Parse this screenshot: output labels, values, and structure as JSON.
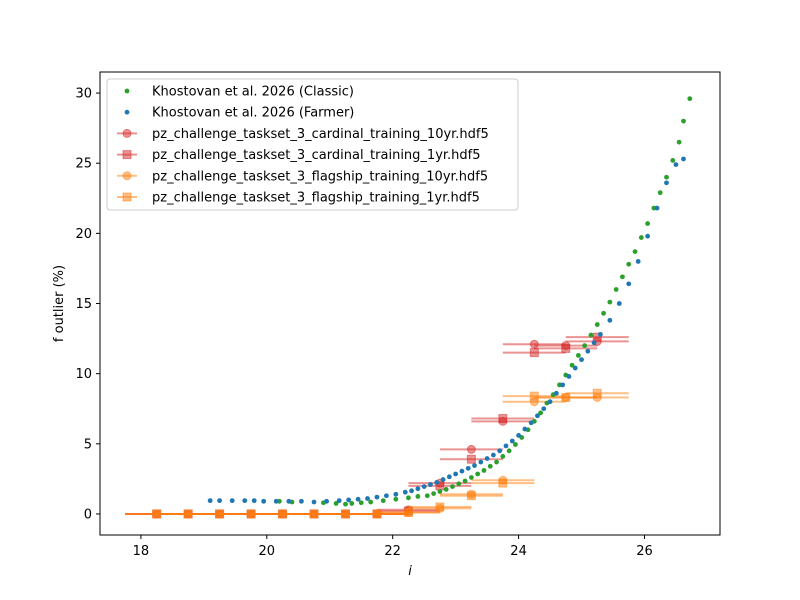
{
  "chart_data": {
    "type": "scatter",
    "title": "",
    "xlabel": "i",
    "ylabel": "f outlier (%)",
    "xlim": [
      17.35,
      27.2
    ],
    "ylim": [
      -1.5,
      31.5
    ],
    "xticks": [
      18,
      20,
      22,
      24,
      26
    ],
    "yticks": [
      0,
      5,
      10,
      15,
      20,
      25,
      30
    ],
    "grid": false,
    "legend_position": "top-left",
    "series": [
      {
        "name": "Khostovan et al. 2026 (Classic)",
        "kind": "points",
        "color": "#2ca02c",
        "x": [
          20.2,
          20.4,
          20.9,
          21.1,
          21.25,
          21.35,
          21.5,
          21.65,
          21.85,
          22.05,
          22.25,
          22.4,
          22.55,
          22.65,
          22.75,
          22.85,
          22.95,
          23.05,
          23.15,
          23.25,
          23.35,
          23.45,
          23.55,
          23.65,
          23.75,
          23.85,
          23.95,
          24.05,
          24.15,
          24.25,
          24.35,
          24.45,
          24.55,
          24.65,
          24.75,
          24.85,
          24.95,
          25.05,
          25.15,
          25.25,
          25.35,
          25.45,
          25.55,
          25.65,
          25.75,
          25.85,
          25.95,
          26.05,
          26.15,
          26.25,
          26.35,
          26.45,
          26.55,
          26.62,
          26.72
        ],
        "y": [
          0.9,
          0.85,
          0.8,
          0.75,
          0.7,
          0.75,
          0.8,
          0.85,
          0.95,
          1.05,
          1.15,
          1.25,
          1.3,
          1.45,
          1.6,
          1.75,
          1.95,
          2.15,
          2.35,
          2.6,
          2.85,
          3.1,
          3.4,
          3.7,
          4.1,
          4.5,
          4.95,
          5.45,
          6.0,
          6.6,
          7.2,
          7.9,
          8.5,
          9.2,
          9.9,
          10.6,
          11.3,
          12.0,
          12.75,
          13.5,
          14.3,
          15.1,
          16.0,
          16.9,
          17.8,
          18.7,
          19.7,
          20.7,
          21.8,
          22.9,
          24.0,
          25.2,
          26.5,
          28.0,
          29.6
        ]
      },
      {
        "name": "Khostovan et al. 2026 (Farmer)",
        "kind": "points",
        "color": "#1f77b4",
        "x": [
          19.1,
          19.25,
          19.45,
          19.65,
          19.8,
          19.95,
          20.15,
          20.35,
          20.55,
          20.75,
          20.95,
          21.15,
          21.3,
          21.45,
          21.6,
          21.75,
          21.9,
          22.05,
          22.2,
          22.3,
          22.4,
          22.5,
          22.6,
          22.7,
          22.8,
          22.9,
          23.0,
          23.1,
          23.2,
          23.3,
          23.4,
          23.5,
          23.6,
          23.7,
          23.8,
          23.9,
          24.0,
          24.1,
          24.2,
          24.3,
          24.4,
          24.5,
          24.6,
          24.7,
          24.8,
          24.9,
          25.0,
          25.1,
          25.2,
          25.3,
          25.45,
          25.6,
          25.75,
          25.9,
          26.05,
          26.2,
          26.35,
          26.5,
          26.62
        ],
        "y": [
          0.95,
          0.95,
          0.95,
          0.95,
          0.95,
          0.9,
          0.9,
          0.9,
          0.9,
          0.85,
          0.9,
          0.95,
          1.0,
          1.05,
          1.1,
          1.2,
          1.3,
          1.4,
          1.55,
          1.65,
          1.8,
          1.95,
          2.1,
          2.25,
          2.45,
          2.65,
          2.85,
          3.05,
          3.25,
          3.45,
          3.7,
          3.95,
          4.2,
          4.5,
          4.85,
          5.2,
          5.6,
          6.05,
          6.5,
          7.0,
          7.5,
          8.0,
          8.6,
          9.2,
          9.8,
          10.4,
          11.0,
          11.6,
          12.2,
          12.8,
          13.8,
          15.0,
          16.4,
          18.0,
          19.8,
          21.8,
          23.6,
          24.9,
          25.3
        ]
      },
      {
        "name": "pz_challenge_taskset_3_cardinal_training_10yr.hdf5",
        "kind": "errorbar",
        "marker": "circle",
        "color": "#d62728",
        "x": [
          18.25,
          18.75,
          19.25,
          19.75,
          20.25,
          20.75,
          21.25,
          21.75,
          22.25,
          22.75,
          23.25,
          23.75,
          24.25,
          24.75,
          25.25
        ],
        "xerr": [
          0.5,
          0.5,
          0.5,
          0.5,
          0.5,
          0.5,
          0.5,
          0.5,
          0.5,
          0.5,
          0.5,
          0.5,
          0.5,
          0.5,
          0.5
        ],
        "y": [
          0,
          0,
          0,
          0,
          0,
          0,
          0,
          0,
          0.3,
          2.2,
          4.6,
          6.6,
          12.1,
          12.0,
          12.3
        ]
      },
      {
        "name": "pz_challenge_taskset_3_cardinal_training_1yr.hdf5",
        "kind": "errorbar",
        "marker": "square",
        "color": "#d62728",
        "x": [
          18.25,
          18.75,
          19.25,
          19.75,
          20.25,
          20.75,
          21.25,
          21.75,
          22.25,
          22.75,
          23.25,
          23.75,
          24.25,
          24.75,
          25.25
        ],
        "xerr": [
          0.5,
          0.5,
          0.5,
          0.5,
          0.5,
          0.5,
          0.5,
          0.5,
          0.5,
          0.5,
          0.5,
          0.5,
          0.5,
          0.5,
          0.5
        ],
        "y": [
          0,
          0,
          0,
          0,
          0,
          0,
          0,
          0,
          0.2,
          2.0,
          3.9,
          6.8,
          11.5,
          11.8,
          12.6
        ]
      },
      {
        "name": "pz_challenge_taskset_3_flagship_training_10yr.hdf5",
        "kind": "errorbar",
        "marker": "circle",
        "color": "#ff7f0e",
        "x": [
          18.25,
          18.75,
          19.25,
          19.75,
          20.25,
          20.75,
          21.25,
          21.75,
          22.25,
          22.75,
          23.25,
          23.75,
          24.25,
          24.75,
          25.25
        ],
        "xerr": [
          0.5,
          0.5,
          0.5,
          0.5,
          0.5,
          0.5,
          0.5,
          0.5,
          0.5,
          0.5,
          0.5,
          0.5,
          0.5,
          0.5,
          0.5
        ],
        "y": [
          0,
          0,
          0,
          0,
          0,
          0,
          0,
          0,
          0.1,
          0.4,
          1.4,
          2.4,
          8.0,
          8.3,
          8.3
        ]
      },
      {
        "name": "pz_challenge_taskset_3_flagship_training_1yr.hdf5",
        "kind": "errorbar",
        "marker": "square",
        "color": "#ff7f0e",
        "x": [
          18.25,
          18.75,
          19.25,
          19.75,
          20.25,
          20.75,
          21.25,
          21.75,
          22.25,
          22.75,
          23.25,
          23.75,
          24.25,
          24.75,
          25.25
        ],
        "xerr": [
          0.5,
          0.5,
          0.5,
          0.5,
          0.5,
          0.5,
          0.5,
          0.5,
          0.5,
          0.5,
          0.5,
          0.5,
          0.5,
          0.5,
          0.5
        ],
        "y": [
          0,
          0,
          0,
          0,
          0,
          0,
          0,
          0,
          0.1,
          0.5,
          1.3,
          2.2,
          8.4,
          8.3,
          8.6
        ]
      }
    ]
  }
}
